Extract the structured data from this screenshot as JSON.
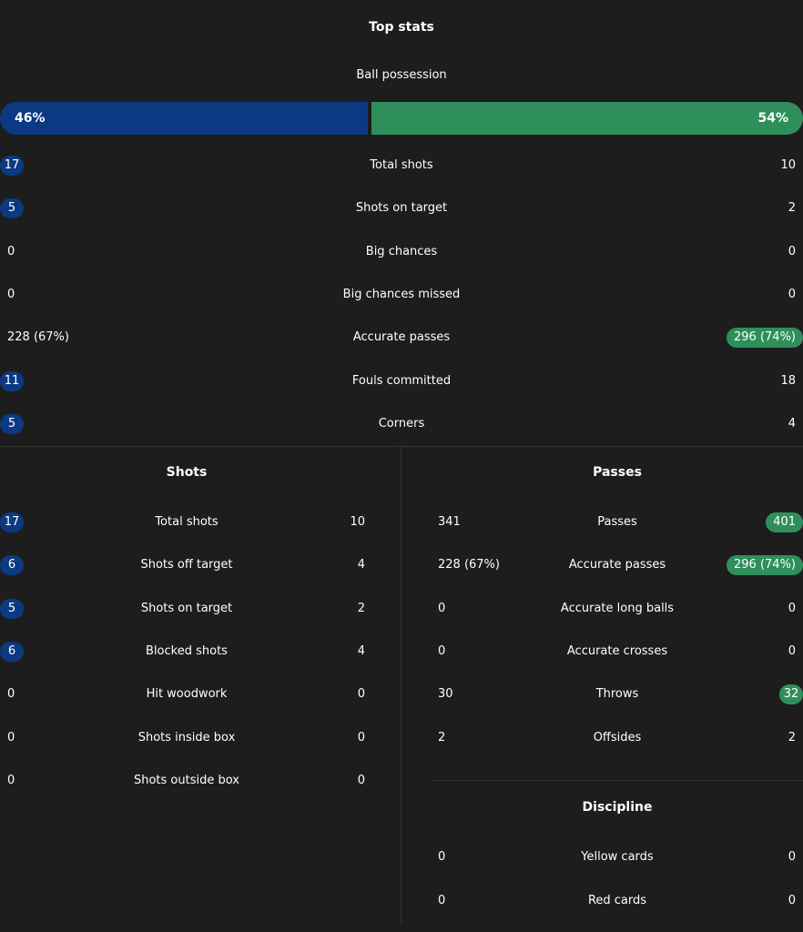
{
  "top": {
    "title": "Top stats",
    "possession": {
      "label": "Ball possession",
      "home": "46%",
      "away": "54%",
      "home_fraction": 0.46
    },
    "rows": [
      {
        "label": "Total shots",
        "home": "17",
        "away": "10",
        "highlight": "home"
      },
      {
        "label": "Shots on target",
        "home": "5",
        "away": "2",
        "highlight": "home"
      },
      {
        "label": "Big chances",
        "home": "0",
        "away": "0",
        "highlight": "none"
      },
      {
        "label": "Big chances missed",
        "home": "0",
        "away": "0",
        "highlight": "none"
      },
      {
        "label": "Accurate passes",
        "home": "228 (67%)",
        "away": "296 (74%)",
        "highlight": "away"
      },
      {
        "label": "Fouls committed",
        "home": "11",
        "away": "18",
        "highlight": "home"
      },
      {
        "label": "Corners",
        "home": "5",
        "away": "4",
        "highlight": "home"
      }
    ]
  },
  "shots": {
    "title": "Shots",
    "rows": [
      {
        "label": "Total shots",
        "home": "17",
        "away": "10",
        "highlight": "home"
      },
      {
        "label": "Shots off target",
        "home": "6",
        "away": "4",
        "highlight": "home"
      },
      {
        "label": "Shots on target",
        "home": "5",
        "away": "2",
        "highlight": "home"
      },
      {
        "label": "Blocked shots",
        "home": "6",
        "away": "4",
        "highlight": "home"
      },
      {
        "label": "Hit woodwork",
        "home": "0",
        "away": "0",
        "highlight": "none"
      },
      {
        "label": "Shots inside box",
        "home": "0",
        "away": "0",
        "highlight": "none"
      },
      {
        "label": "Shots outside box",
        "home": "0",
        "away": "0",
        "highlight": "none"
      }
    ]
  },
  "passes": {
    "title": "Passes",
    "rows": [
      {
        "label": "Passes",
        "home": "341",
        "away": "401",
        "highlight": "away"
      },
      {
        "label": "Accurate passes",
        "home": "228 (67%)",
        "away": "296 (74%)",
        "highlight": "away"
      },
      {
        "label": "Accurate long balls",
        "home": "0",
        "away": "0",
        "highlight": "none"
      },
      {
        "label": "Accurate crosses",
        "home": "0",
        "away": "0",
        "highlight": "none"
      },
      {
        "label": "Throws",
        "home": "30",
        "away": "32",
        "highlight": "away"
      },
      {
        "label": "Offsides",
        "home": "2",
        "away": "2",
        "highlight": "none"
      }
    ]
  },
  "discipline": {
    "title": "Discipline",
    "rows": [
      {
        "label": "Yellow cards",
        "home": "0",
        "away": "0",
        "highlight": "none"
      },
      {
        "label": "Red cards",
        "home": "0",
        "away": "0",
        "highlight": "none"
      }
    ]
  },
  "colors": {
    "background": "#1d1d1d",
    "home": "#0b3a82",
    "away": "#2f8f5b",
    "divider": "#333333"
  }
}
